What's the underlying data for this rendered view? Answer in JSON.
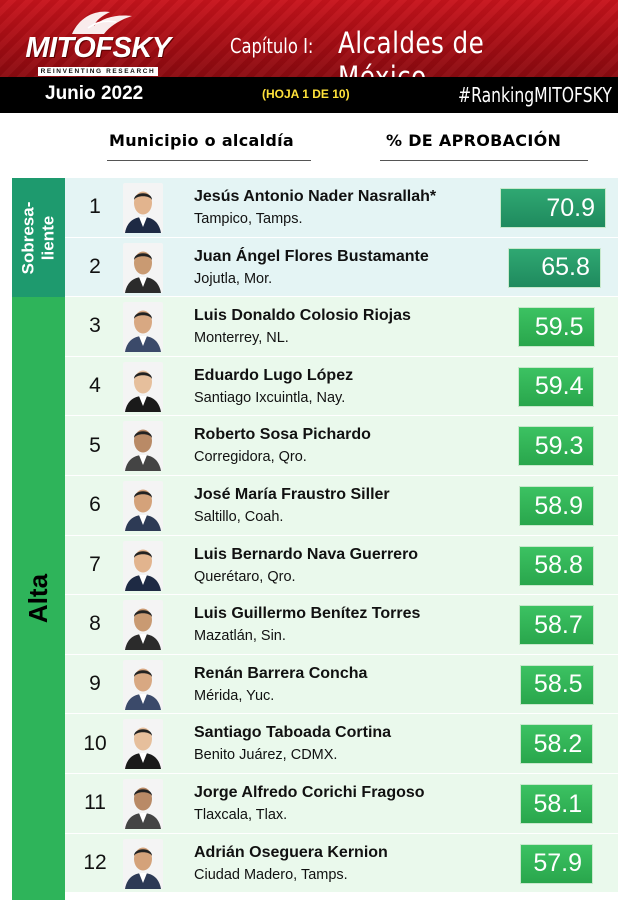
{
  "header": {
    "logo_text": "MITOFSKY",
    "logo_tagline": "REINVENTING RESEARCH",
    "chapter_label": "Capítulo I:",
    "chapter_title": "Alcaldes de México",
    "date": "Junio 2022",
    "sheet": "(HOJA 1 DE 10)",
    "hashtag": "#RankingMITOFSKY"
  },
  "columns": {
    "municipality": "Municipio o alcaldía",
    "approval": "% DE APROBACIÓN"
  },
  "categories": [
    {
      "label": "Sobresa-\nliente",
      "color": "#1e9a6e"
    },
    {
      "label": "Alta",
      "color": "#2eb45a"
    }
  ],
  "colors": {
    "banner_red": "#b3111a",
    "bar_green": "#2eb45a",
    "bar_top_green": "#1f8a5e",
    "sheet_yellow": "#ffe23a"
  },
  "ranking": [
    {
      "rank": "1",
      "name": "Jesús Antonio Nader Nasrallah*",
      "place": "Tampico, Tamps.",
      "approval": 70.9,
      "approval_text": "70.9",
      "category": "sobresaliente"
    },
    {
      "rank": "2",
      "name": "Juan Ángel Flores Bustamante",
      "place": "Jojutla, Mor.",
      "approval": 65.8,
      "approval_text": "65.8",
      "category": "sobresaliente"
    },
    {
      "rank": "3",
      "name": "Luis Donaldo Colosio Riojas",
      "place": "Monterrey, NL.",
      "approval": 59.5,
      "approval_text": "59.5",
      "category": "alta"
    },
    {
      "rank": "4",
      "name": "Eduardo Lugo López",
      "place": "Santiago Ixcuintla, Nay.",
      "approval": 59.4,
      "approval_text": "59.4",
      "category": "alta"
    },
    {
      "rank": "5",
      "name": "Roberto Sosa Pichardo",
      "place": "Corregidora, Qro.",
      "approval": 59.3,
      "approval_text": "59.3",
      "category": "alta"
    },
    {
      "rank": "6",
      "name": "José María Fraustro Siller",
      "place": "Saltillo, Coah.",
      "approval": 58.9,
      "approval_text": "58.9",
      "category": "alta"
    },
    {
      "rank": "7",
      "name": "Luis Bernardo Nava Guerrero",
      "place": "Querétaro, Qro.",
      "approval": 58.8,
      "approval_text": "58.8",
      "category": "alta"
    },
    {
      "rank": "8",
      "name": "Luis Guillermo Benítez Torres",
      "place": "Mazatlán, Sin.",
      "approval": 58.7,
      "approval_text": "58.7",
      "category": "alta"
    },
    {
      "rank": "9",
      "name": "Renán Barrera Concha",
      "place": "Mérida, Yuc.",
      "approval": 58.5,
      "approval_text": "58.5",
      "category": "alta"
    },
    {
      "rank": "10",
      "name": "Santiago Taboada Cortina",
      "place": "Benito Juárez, CDMX.",
      "approval": 58.2,
      "approval_text": "58.2",
      "category": "alta"
    },
    {
      "rank": "11",
      "name": "Jorge Alfredo Corichi Fragoso",
      "place": "Tlaxcala, Tlax.",
      "approval": 58.1,
      "approval_text": "58.1",
      "category": "alta"
    },
    {
      "rank": "12",
      "name": "Adrián Oseguera Kernion",
      "place": "Ciudad Madero, Tamps.",
      "approval": 57.9,
      "approval_text": "57.9",
      "category": "alta"
    }
  ]
}
